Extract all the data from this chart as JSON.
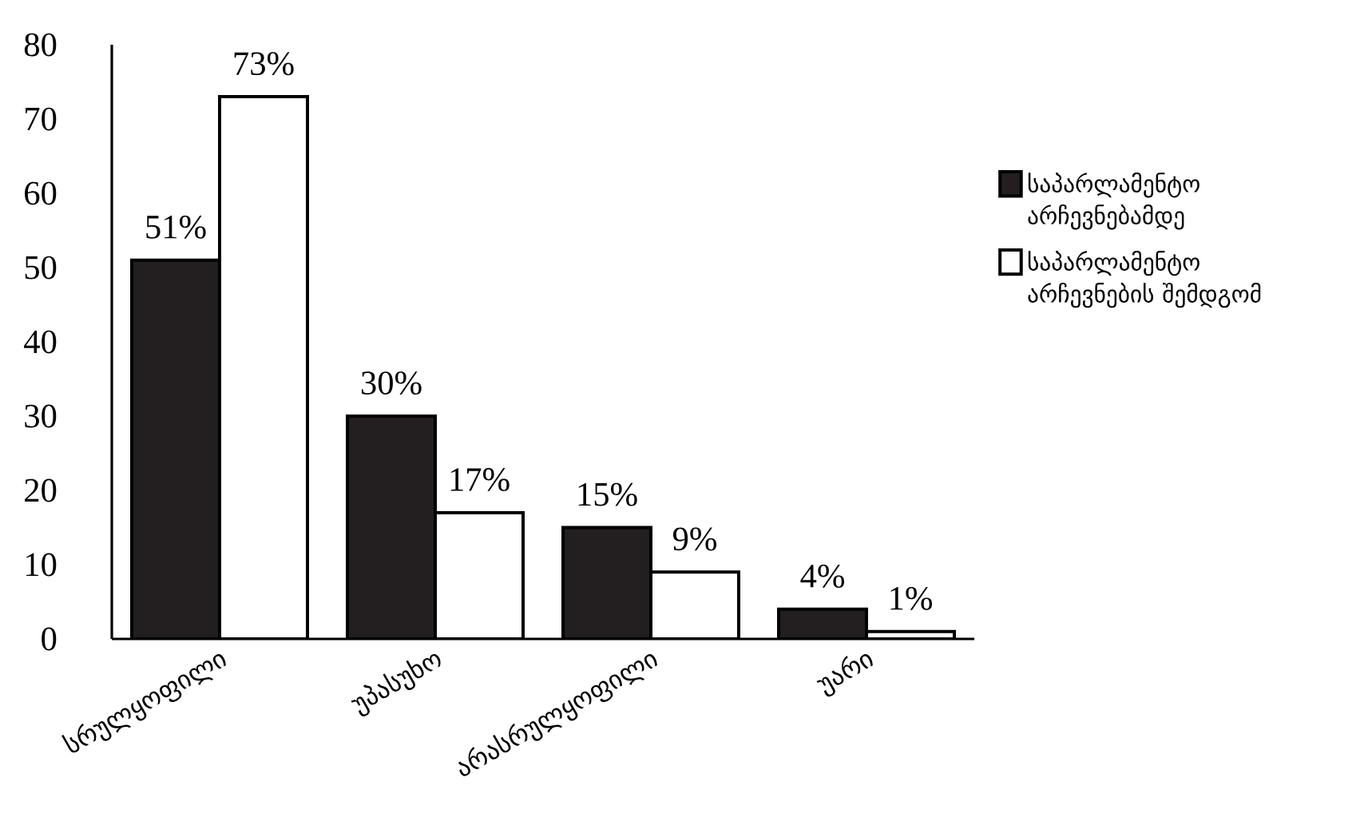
{
  "chart_data": {
    "type": "bar",
    "categories": [
      "სრულყოფილი",
      "უპასუხო",
      "არასრულყოფილი",
      "უარი"
    ],
    "series": [
      {
        "name": "საპარლამენტო არჩევნებამდე",
        "color": "#231f20",
        "values": [
          51,
          30,
          15,
          4
        ],
        "value_labels": [
          "51%",
          "30%",
          "15%",
          "4%"
        ]
      },
      {
        "name": "საპარლამენტო არჩევნების შემდგომ",
        "color": "#ffffff",
        "values": [
          73,
          17,
          9,
          1
        ],
        "value_labels": [
          "73%",
          "17%",
          "9%",
          "1%"
        ]
      }
    ],
    "ylim": [
      0,
      80
    ],
    "yticks": [
      0,
      10,
      20,
      30,
      40,
      50,
      60,
      70,
      80
    ],
    "legend": "right",
    "grid": false
  }
}
